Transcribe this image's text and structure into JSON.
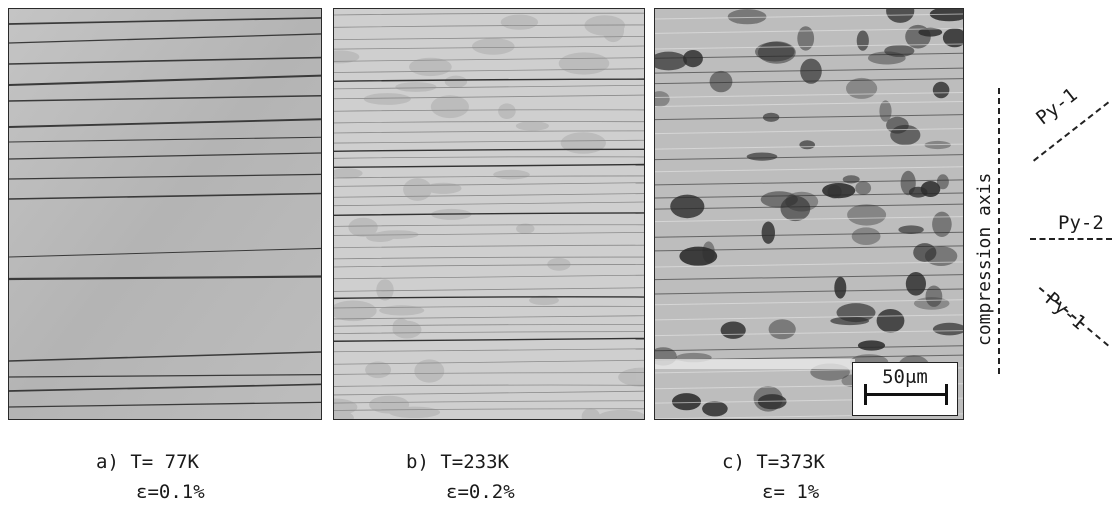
{
  "panels": [
    {
      "caption_line1": "a) T= 77K",
      "caption_line2": "ε=0.1%"
    },
    {
      "caption_line1": "b) T=233K",
      "caption_line2": "ε=0.2%"
    },
    {
      "caption_line1": "c) T=373K",
      "caption_line2": "ε= 1%"
    }
  ],
  "scale_bar": {
    "label": "50μm"
  },
  "axis_label": "compression axis",
  "slip_planes": {
    "top": "Py-1",
    "middle": "Py-2",
    "bottom": "Py-1"
  }
}
